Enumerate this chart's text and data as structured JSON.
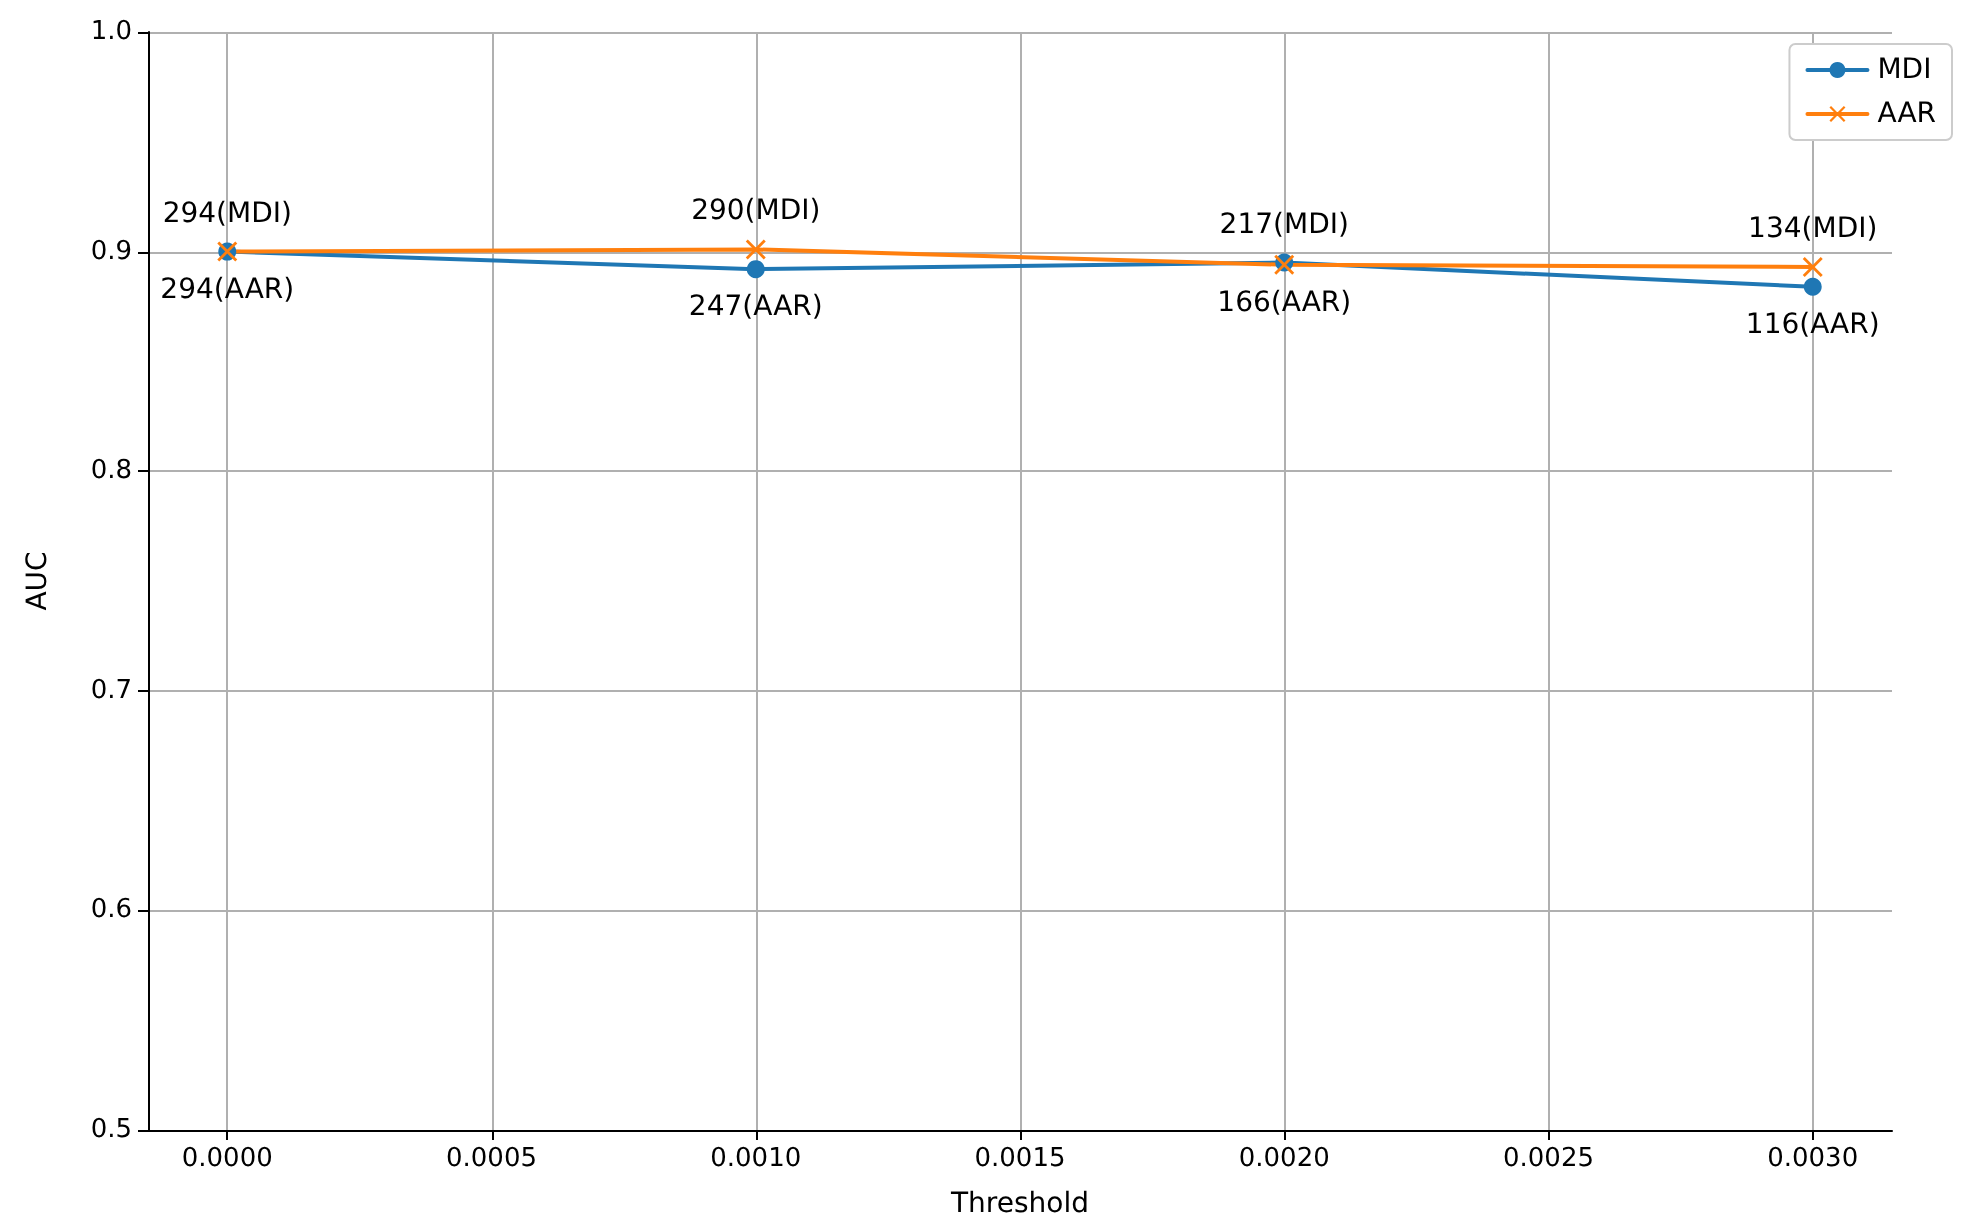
{
  "chart_data": {
    "type": "line",
    "xlabel": "Threshold",
    "ylabel": "AUC",
    "x": [
      0,
      0.001,
      0.002,
      0.003
    ],
    "series": [
      {
        "name": "MDI",
        "color": "#1f77b4",
        "marker": "circle",
        "values": [
          0.9,
          0.892,
          0.895,
          0.884
        ]
      },
      {
        "name": "AAR",
        "color": "#ff7f0e",
        "marker": "cross",
        "values": [
          0.9,
          0.901,
          0.894,
          0.893
        ]
      }
    ],
    "xlim": [
      -0.00015,
      0.00315
    ],
    "xticks": [
      {
        "value": 0,
        "label": "0.0000"
      },
      {
        "value": 0.0005,
        "label": "0.0005"
      },
      {
        "value": 0.001,
        "label": "0.0010"
      },
      {
        "value": 0.0015,
        "label": "0.0015"
      },
      {
        "value": 0.002,
        "label": "0.0020"
      },
      {
        "value": 0.0025,
        "label": "0.0025"
      },
      {
        "value": 0.003,
        "label": "0.0030"
      }
    ],
    "ylim": [
      0.5,
      1.0
    ],
    "yticks": [
      {
        "value": 0.5,
        "label": "0.5"
      },
      {
        "value": 0.6,
        "label": "0.6"
      },
      {
        "value": 0.7,
        "label": "0.7"
      },
      {
        "value": 0.8,
        "label": "0.8"
      },
      {
        "value": 0.9,
        "label": "0.9"
      },
      {
        "value": 1.0,
        "label": "1.0"
      }
    ],
    "annotations": [
      {
        "text": "294(MDI)",
        "x": 0,
        "y": 0.9
      },
      {
        "text": "294(AAR)",
        "x": 0,
        "y": 0.9
      },
      {
        "text": "290(MDI)",
        "x": 0.001,
        "y": 0.901
      },
      {
        "text": "247(AAR)",
        "x": 0.001,
        "y": 0.892
      },
      {
        "text": "217(MDI)",
        "x": 0.002,
        "y": 0.895
      },
      {
        "text": "166(AAR)",
        "x": 0.002,
        "y": 0.894
      },
      {
        "text": "134(MDI)",
        "x": 0.003,
        "y": 0.893
      },
      {
        "text": "116(AAR)",
        "x": 0.003,
        "y": 0.884
      }
    ],
    "grid": true,
    "legend": "top right",
    "line_style": "solid"
  }
}
